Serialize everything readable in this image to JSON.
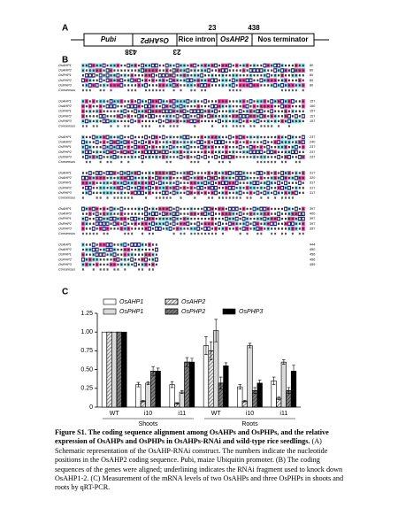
{
  "panel_a": {
    "label": "A",
    "elements": [
      "Pubi",
      "OsAHP2",
      "Rice intron",
      "OsAHP2",
      "Nos terminator"
    ],
    "positions_top": [
      "23",
      "438"
    ],
    "positions_bottom": [
      "438",
      "23"
    ]
  },
  "panel_b": {
    "label": "B",
    "sequence_names": [
      "OsAHP1",
      "OsAHP2",
      "OsPHP1",
      "OsPHP2",
      "OsPHP3",
      "Consensus"
    ],
    "blocks": [
      {
        "end_positions": [
          80,
          80,
          80,
          80,
          80
        ]
      },
      {
        "end_positions": [
          157,
          160,
          157,
          157,
          157
        ]
      },
      {
        "end_positions": [
          237,
          240,
          237,
          237,
          237
        ]
      },
      {
        "end_positions": [
          317,
          320,
          317,
          317,
          317
        ]
      },
      {
        "end_positions": [
          397,
          400,
          397,
          397,
          397
        ]
      },
      {
        "end_positions": [
          444,
          450,
          456,
          456,
          459
        ]
      }
    ]
  },
  "panel_c": {
    "label": "C"
  },
  "chart_data": {
    "type": "bar",
    "categories": [
      "WT",
      "i10",
      "i11",
      "WT",
      "i10",
      "i11"
    ],
    "group_labels": [
      "Shoots",
      "Roots"
    ],
    "series": [
      {
        "name": "OsAHP1",
        "color": "#ffffff",
        "hatched": false,
        "values": [
          1.0,
          0.3,
          0.3,
          0.82,
          0.27,
          0.35
        ],
        "errors": [
          0,
          0.03,
          0.04,
          0.12,
          0.03,
          0.05
        ]
      },
      {
        "name": "OsAHP2",
        "color": "#e6e6e6",
        "hatched": true,
        "values": [
          1.0,
          0.08,
          0.05,
          0.75,
          0.08,
          0.12
        ],
        "errors": [
          0,
          0.01,
          0.01,
          0.12,
          0.01,
          0.02
        ]
      },
      {
        "name": "OsPHP1",
        "color": "#d9d9d9",
        "hatched": false,
        "values": [
          1.0,
          0.32,
          0.2,
          1.02,
          0.82,
          0.6
        ],
        "errors": [
          0,
          0.02,
          0.02,
          0.15,
          0.03,
          0.03
        ]
      },
      {
        "name": "OsPHP2",
        "color": "#7f7f7f",
        "hatched": true,
        "values": [
          1.0,
          0.48,
          0.6,
          0.32,
          0.22,
          0.22
        ],
        "errors": [
          0,
          0.06,
          0.06,
          0.08,
          0.04,
          0.04
        ]
      },
      {
        "name": "OsPHP3",
        "color": "#000000",
        "hatched": false,
        "values": [
          1.0,
          0.48,
          0.6,
          0.55,
          0.32,
          0.48
        ],
        "errors": [
          0,
          0.04,
          0.05,
          0.04,
          0.04,
          0.08
        ]
      }
    ],
    "ylim": [
      0,
      1.25
    ],
    "yticks": [
      0,
      0.25,
      {
        "value": 0.5,
        "label": "0.50"
      },
      0.75,
      {
        "value": 1,
        "label": "1.00"
      },
      1.25
    ]
  },
  "caption": {
    "title": "Figure S1. The coding sequence alignment among OsAHPs and OsPHPs, and the relative expression of OsAHPs and OsPHPs in OsAHPs-RNAi and wild-type rice seedlings.",
    "body": "(A) Schematic representation of the OsAHP-RNAi construct. The numbers indicate the nucleotide positions in the OsAHP2 coding sequence. Pubi, maize Ubiquitin promoter. (B) The coding sequences of the genes were aligned; underlining indicates the RNAi fragment used to knock down OsAHP1-2. (C) Measurement of the mRNA levels of two OsAHPs and three OsPHPs in shoots and roots by qRT-PCR."
  }
}
